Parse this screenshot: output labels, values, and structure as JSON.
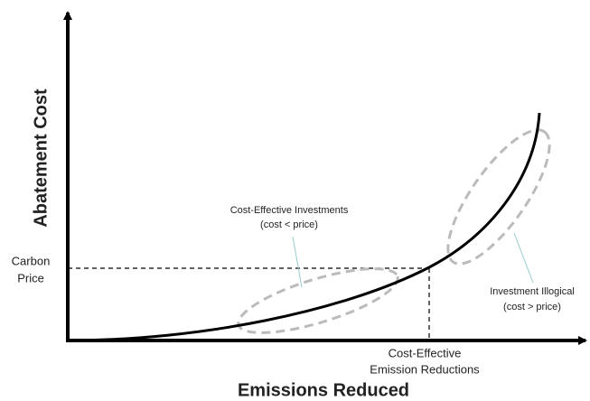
{
  "axes": {
    "y_label": "Abatement Cost",
    "x_label": "Emissions Reduced"
  },
  "carbon_price_label": [
    "Carbon",
    "Price"
  ],
  "annotations": [
    {
      "lines": [
        "Cost-Effective Investments",
        "(cost < price)"
      ]
    },
    {
      "lines": [
        "Investment Illogical",
        "(cost > price)"
      ]
    },
    {
      "lines": [
        "Cost-Effective",
        "Emission Reductions"
      ]
    }
  ]
}
